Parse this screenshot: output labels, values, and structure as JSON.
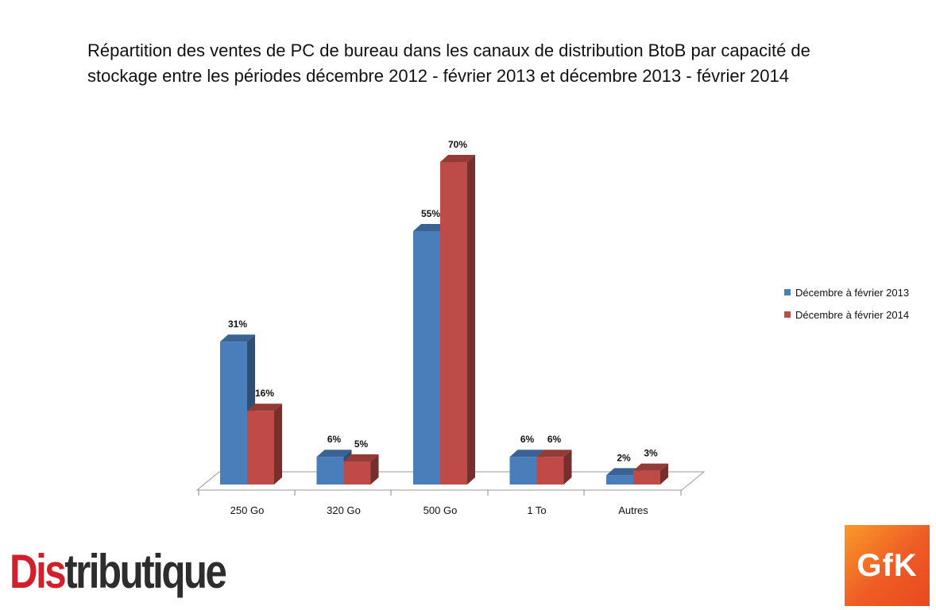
{
  "title_lines": [
    "Répartition des ventes de PC de bureau dans les canaux de distribution BtoB par capacité de",
    "stockage entre les périodes décembre 2012 - février 2013 et décembre 2013 - février 2014"
  ],
  "chart_data": {
    "type": "bar",
    "categories": [
      "250 Go",
      "320 Go",
      "500 Go",
      "1 To",
      "Autres"
    ],
    "series": [
      {
        "name": "Décembre à février 2013",
        "values": [
          31,
          6,
          55,
          6,
          2
        ],
        "labels": [
          "31%",
          "6%",
          "55%",
          "6%",
          "2%"
        ],
        "color": "#4a7ebb"
      },
      {
        "name": "Décembre à février 2014",
        "values": [
          16,
          5,
          70,
          6,
          3
        ],
        "labels": [
          "16%",
          "5%",
          "70%",
          "6%",
          "3%"
        ],
        "color": "#be4b48"
      }
    ],
    "ylim": [
      0,
      70
    ],
    "legend_position": "right",
    "grid": false
  },
  "logos": {
    "distributique": {
      "text_accent": "Dis",
      "text_rest": "tributique"
    },
    "gfk": {
      "text": "GfK"
    }
  }
}
